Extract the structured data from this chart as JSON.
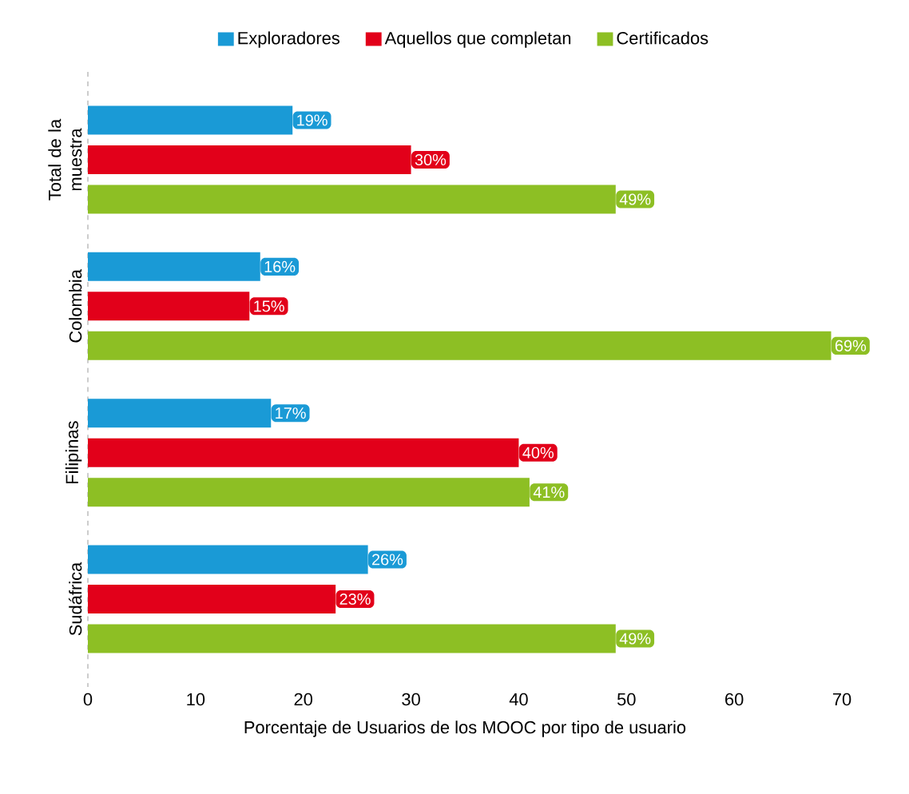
{
  "chart_data": {
    "type": "bar",
    "orientation": "horizontal",
    "xlabel": "Porcentaje de Usuarios de los MOOC por tipo de usuario",
    "categories": [
      "Total de la muestra",
      "Colombia",
      "Filipinas",
      "Sudáfrica"
    ],
    "series": [
      {
        "name": "Exploradores",
        "color": "#1a9ad6",
        "values": [
          19,
          16,
          17,
          26
        ],
        "value_labels": [
          "19%",
          "16%",
          "17%",
          "26%"
        ]
      },
      {
        "name": "Aquellos que completan",
        "color": "#e2001a",
        "values": [
          30,
          15,
          40,
          23
        ],
        "value_labels": [
          "30%",
          "15%",
          "40%",
          "23%"
        ]
      },
      {
        "name": "Certificados",
        "color": "#8dbf24",
        "values": [
          49,
          69,
          41,
          49
        ],
        "value_labels": [
          "49%",
          "69%",
          "41%",
          "49%"
        ]
      }
    ],
    "xlim": [
      0,
      70
    ],
    "xticks": [
      0,
      10,
      20,
      30,
      40,
      50,
      60,
      70
    ],
    "grid": false,
    "legend": "top"
  }
}
